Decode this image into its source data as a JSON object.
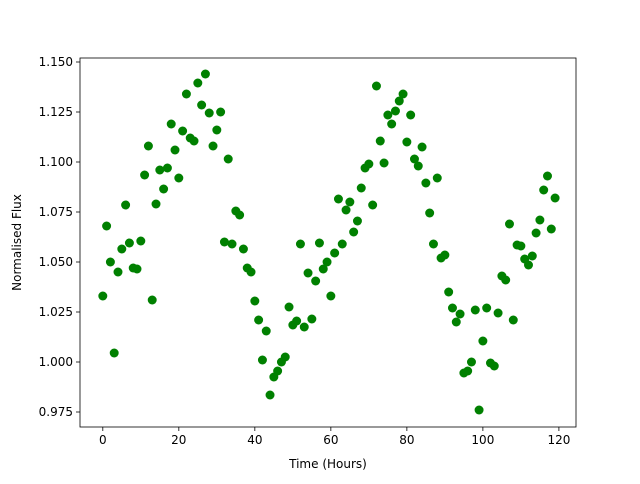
{
  "chart_data": {
    "type": "scatter",
    "title": "",
    "xlabel": "Time (Hours)",
    "ylabel": "Normalised Flux",
    "xlim": [
      -6,
      124.5
    ],
    "ylim": [
      0.9675,
      1.152
    ],
    "xticks": [
      0,
      20,
      40,
      60,
      80,
      100,
      120
    ],
    "xtick_labels": [
      "0",
      "20",
      "40",
      "60",
      "80",
      "100",
      "120"
    ],
    "yticks": [
      0.975,
      1.0,
      1.025,
      1.05,
      1.075,
      1.1,
      1.125,
      1.15
    ],
    "ytick_labels": [
      "0.975",
      "1.000",
      "1.025",
      "1.050",
      "1.075",
      "1.100",
      "1.125",
      "1.150"
    ],
    "grid": false,
    "marker_color": "#008000",
    "x": [
      0,
      1,
      2,
      3,
      4,
      5,
      6,
      7,
      8,
      9,
      10,
      11,
      12,
      13,
      14,
      15,
      16,
      17,
      18,
      19,
      20,
      21,
      22,
      23,
      24,
      25,
      26,
      27,
      28,
      29,
      30,
      31,
      32,
      33,
      34,
      35,
      36,
      37,
      38,
      39,
      40,
      41,
      42,
      43,
      44,
      45,
      46,
      47,
      48,
      49,
      50,
      51,
      52,
      53,
      54,
      55,
      56,
      57,
      58,
      59,
      60,
      61,
      62,
      63,
      64,
      65,
      66,
      67,
      68,
      69,
      70,
      71,
      72,
      73,
      74,
      75,
      76,
      77,
      78,
      79,
      80,
      81,
      82,
      83,
      84,
      85,
      86,
      87,
      88,
      89,
      90,
      91,
      92,
      93,
      94,
      95,
      96,
      97,
      98,
      99,
      100,
      101,
      102,
      103,
      104,
      105,
      106,
      107,
      108,
      109,
      110,
      111,
      112,
      113,
      114,
      115,
      116,
      117,
      118,
      119
    ],
    "y": [
      1.033,
      1.068,
      1.05,
      1.0045,
      1.045,
      1.0565,
      1.0785,
      1.0595,
      1.047,
      1.0465,
      1.0605,
      1.0935,
      1.108,
      1.031,
      1.079,
      1.096,
      1.0865,
      1.097,
      1.119,
      1.106,
      1.092,
      1.1155,
      1.134,
      1.112,
      1.1105,
      1.1395,
      1.1285,
      1.144,
      1.1245,
      1.108,
      1.116,
      1.125,
      1.06,
      1.1015,
      1.059,
      1.0755,
      1.0735,
      1.0565,
      1.047,
      1.045,
      1.0305,
      1.021,
      1.001,
      1.0155,
      0.9835,
      0.9925,
      0.9955,
      1.0,
      1.0025,
      1.0275,
      1.0185,
      1.0205,
      1.059,
      1.0175,
      1.0445,
      1.0215,
      1.0405,
      1.0595,
      1.0465,
      1.05,
      1.033,
      1.0545,
      1.0815,
      1.059,
      1.076,
      1.08,
      1.065,
      1.0705,
      1.087,
      1.097,
      1.099,
      1.0785,
      1.138,
      1.1105,
      1.0995,
      1.1235,
      1.119,
      1.1255,
      1.1305,
      1.134,
      1.11,
      1.1235,
      1.1015,
      1.098,
      1.1075,
      1.0895,
      1.0745,
      1.059,
      1.092,
      1.052,
      1.0535,
      1.035,
      1.027,
      1.02,
      1.024,
      0.9945,
      0.9955,
      1.0,
      1.026,
      0.976,
      1.0105,
      1.027,
      0.9995,
      0.998,
      1.0245,
      1.043,
      1.041,
      1.069,
      1.021,
      1.0585,
      1.058,
      1.0515,
      1.0485,
      1.053,
      1.0645,
      1.071,
      1.086,
      1.093,
      1.0665,
      1.082
    ]
  }
}
